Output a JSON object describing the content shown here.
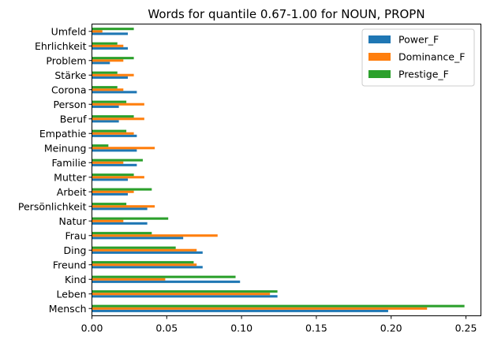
{
  "chart_data": {
    "type": "bar",
    "orientation": "horizontal",
    "title": "Words for quantile 0.67-1.00 for NOUN, PROPN",
    "xlabel": "",
    "ylabel": "",
    "xlim": [
      0,
      0.26
    ],
    "xticks": [
      0.0,
      0.05,
      0.1,
      0.15,
      0.2,
      0.25
    ],
    "xtick_labels": [
      "0.00",
      "0.05",
      "0.10",
      "0.15",
      "0.20",
      "0.25"
    ],
    "grid": false,
    "legend_position": "top-right",
    "categories": [
      "Mensch",
      "Leben",
      "Kind",
      "Freund",
      "Ding",
      "Frau",
      "Natur",
      "Persönlichkeit",
      "Arbeit",
      "Mutter",
      "Familie",
      "Meinung",
      "Empathie",
      "Beruf",
      "Person",
      "Corona",
      "Stärke",
      "Problem",
      "Ehrlichkeit",
      "Umfeld"
    ],
    "series": [
      {
        "name": "Power_F",
        "color": "#1f77b4",
        "values": [
          0.198,
          0.124,
          0.099,
          0.074,
          0.074,
          0.061,
          0.037,
          0.037,
          0.024,
          0.024,
          0.03,
          0.03,
          0.03,
          0.018,
          0.018,
          0.03,
          0.024,
          0.012,
          0.024,
          0.024
        ]
      },
      {
        "name": "Dominance_F",
        "color": "#ff7f0e",
        "values": [
          0.224,
          0.119,
          0.049,
          0.07,
          0.07,
          0.084,
          0.021,
          0.042,
          0.028,
          0.035,
          0.021,
          0.042,
          0.028,
          0.035,
          0.035,
          0.021,
          0.028,
          0.021,
          0.021,
          0.007
        ]
      },
      {
        "name": "Prestige_F",
        "color": "#2ca02c",
        "values": [
          0.249,
          0.124,
          0.096,
          0.068,
          0.056,
          0.04,
          0.051,
          0.023,
          0.04,
          0.028,
          0.034,
          0.011,
          0.023,
          0.028,
          0.023,
          0.017,
          0.017,
          0.028,
          0.017,
          0.028
        ]
      }
    ]
  }
}
